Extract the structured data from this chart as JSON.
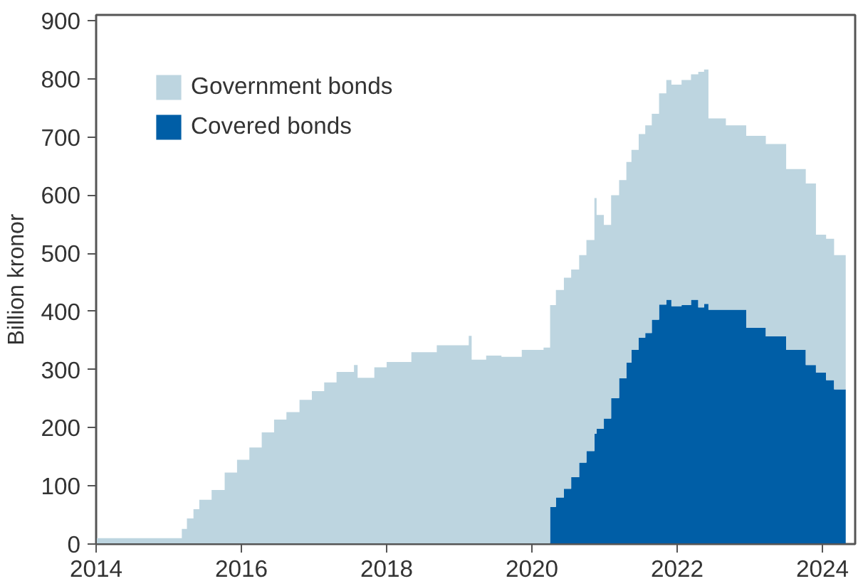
{
  "chart_data": {
    "type": "area",
    "stacked": true,
    "ylabel": "Billion kronor",
    "legend": "top left",
    "grid": false,
    "x": [
      2014,
      2015.13,
      2015.18,
      2015.25,
      2015.34,
      2015.42,
      2015.59,
      2015.77,
      2015.94,
      2016.11,
      2016.28,
      2016.45,
      2016.62,
      2016.8,
      2016.97,
      2017.14,
      2017.31,
      2017.55,
      2017.6,
      2017.83,
      2018.0,
      2018.34,
      2018.69,
      2019.13,
      2019.17,
      2019.37,
      2019.58,
      2019.86,
      2020.16,
      2020.25,
      2020.33,
      2020.44,
      2020.54,
      2020.65,
      2020.75,
      2020.86,
      2020.89,
      2020.99,
      2021.09,
      2021.2,
      2021.3,
      2021.37,
      2021.47,
      2021.56,
      2021.65,
      2021.75,
      2021.85,
      2021.92,
      2022.06,
      2022.19,
      2022.29,
      2022.37,
      2022.43,
      2022.67,
      2022.95,
      2023.22,
      2023.5,
      2023.77,
      2023.91,
      2024.05,
      2024.16,
      2024.32
    ],
    "series": [
      {
        "name": "Covered bonds",
        "color": "#005ea6",
        "values": [
          0,
          0,
          0,
          0,
          0,
          0,
          0,
          0,
          0,
          0,
          0,
          0,
          0,
          0,
          0,
          0,
          0,
          0,
          0,
          0,
          0,
          0,
          0,
          0,
          0,
          0,
          0,
          0,
          0,
          64,
          80,
          95,
          115,
          140,
          160,
          190,
          198,
          216,
          251,
          285,
          312,
          334,
          355,
          363,
          386,
          412,
          420,
          409,
          411,
          420,
          407,
          413,
          403,
          403,
          372,
          357,
          334,
          308,
          295,
          282,
          266,
          266
        ]
      },
      {
        "name": "Government bonds",
        "color": "#bdd5e0",
        "values": [
          10,
          10,
          26,
          44,
          60,
          76,
          93,
          123,
          145,
          166,
          192,
          214,
          227,
          248,
          263,
          278,
          296,
          308,
          286,
          304,
          313,
          330,
          342,
          358,
          317,
          324,
          322,
          334,
          338,
          347,
          357,
          363,
          357,
          357,
          363,
          405,
          368,
          333,
          349,
          341,
          345,
          344,
          350,
          357,
          354,
          363,
          378,
          381,
          387,
          388,
          405,
          403,
          329,
          317,
          330,
          331,
          311,
          312,
          237,
          243,
          231,
          224
        ]
      }
    ],
    "xlim": [
      2014,
      2024.45
    ],
    "ylim": [
      0,
      910
    ],
    "xticks": [
      2014,
      2016,
      2018,
      2020,
      2022,
      2024
    ],
    "yticks": [
      0,
      100,
      200,
      300,
      400,
      500,
      600,
      700,
      800,
      900
    ]
  }
}
